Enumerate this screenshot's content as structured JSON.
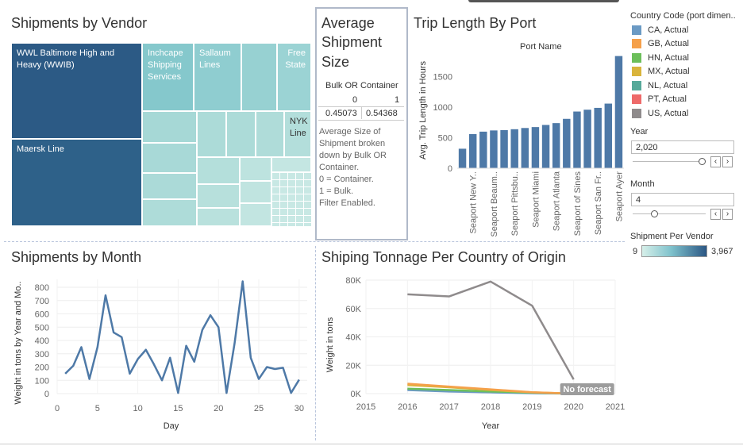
{
  "vendor": {
    "title": "Shipments by Vendor",
    "labels": {
      "wwl": "WWL Baltimore High and Heavy (WWIB)",
      "maersk": "Maersk Line",
      "inchcape": "Inchcape Shipping Services",
      "sallaum": "Sallaum Lines",
      "freestate": "Free State",
      "nyk": "NYK Line"
    }
  },
  "avg": {
    "title_1": "Average",
    "title_2": "Shipment",
    "title_3": "Size",
    "header": "Bulk OR Container",
    "col0": "0",
    "col1": "1",
    "val0": "0.45073",
    "val1": "0.54368",
    "desc": [
      "Average Size of",
      "Shipment broken",
      "down by Bulk OR",
      "Container.",
      "0 = Container.",
      "1 = Bulk.",
      "Filter Enabled."
    ]
  },
  "port": {
    "title": "Trip Length By Port",
    "header": "Port Name",
    "ylabel": "Avg. Trip Length in Hours",
    "port_labels": [
      "Seaport New Y..",
      "Seaport Beaum..",
      "Seaport Pittsbu..",
      "Seaport Miami",
      "Seaport Atlanta",
      "Seaport of Sines",
      "Seaport San Fr..",
      "Seaport Ayer"
    ]
  },
  "month": {
    "title": "Shipments by Month",
    "ylabel": "Weight in tons by Year and Mo..",
    "xlabel": "Day"
  },
  "tonnage": {
    "title": "Shiping Tonnage Per Country of Origin",
    "ylabel": "Weight in tons",
    "xlabel": "Year",
    "no_forecast": "No forecast"
  },
  "legend": {
    "title": "Country Code (port dimen..",
    "items": [
      {
        "label": "CA, Actual",
        "color": "#6b9ac4"
      },
      {
        "label": "GB, Actual",
        "color": "#f5a04a"
      },
      {
        "label": "HN, Actual",
        "color": "#6cbf5a"
      },
      {
        "label": "MX, Actual",
        "color": "#d9b43c"
      },
      {
        "label": "NL, Actual",
        "color": "#56a99a"
      },
      {
        "label": "PT, Actual",
        "color": "#ee6a6a"
      },
      {
        "label": "US, Actual",
        "color": "#8f8b8c"
      }
    ]
  },
  "filters": {
    "year_label": "Year",
    "year_value": "2,020",
    "year_level": 1.0,
    "month_label": "Month",
    "month_value": "4",
    "month_level": 0.27,
    "prev_icon": "‹",
    "next_icon": "›"
  },
  "color_scale": {
    "title": "Shipment Per Vendor",
    "min": "9",
    "max": "3,967",
    "from": "#d6efe9",
    "to": "#2b5784"
  },
  "chart_data": [
    {
      "type": "bar",
      "title": "Trip Length By Port",
      "xlabel": "Port Name",
      "ylabel": "Avg. Trip Length in Hours",
      "ylim": [
        0,
        1900
      ],
      "yticks": [
        0,
        500,
        1000,
        1500
      ],
      "tick_labels": [
        "0",
        "500",
        "1000",
        "1500"
      ],
      "categories": [
        "",
        "Seaport New Y..",
        "",
        "Seaport Beaum..",
        "",
        "Seaport Pittsbu..",
        "",
        "Seaport Miami",
        "",
        "Seaport Atlanta",
        "",
        "Seaport of Sines",
        "",
        "Seaport San Fr..",
        "",
        "Seaport Ayer"
      ],
      "values": [
        320,
        560,
        600,
        620,
        625,
        640,
        660,
        675,
        710,
        740,
        810,
        930,
        960,
        990,
        1060,
        1840
      ],
      "color": "#4e79a7"
    },
    {
      "type": "line",
      "title": "Shipments by Month",
      "xlabel": "Day",
      "ylabel": "Weight in tons by Year and Mo..",
      "xlim": [
        0,
        31
      ],
      "ylim": [
        0,
        860
      ],
      "xticks": [
        0,
        5,
        10,
        15,
        20,
        25,
        30
      ],
      "yticks": [
        0,
        100,
        200,
        300,
        400,
        500,
        600,
        700,
        800
      ],
      "x": [
        1,
        2,
        3,
        4,
        5,
        6,
        7,
        8,
        9,
        10,
        11,
        12,
        13,
        14,
        15,
        16,
        17,
        18,
        19,
        20,
        21,
        22,
        23,
        24,
        25,
        26,
        27,
        28,
        29,
        30
      ],
      "values": [
        150,
        210,
        350,
        110,
        350,
        740,
        460,
        425,
        150,
        260,
        330,
        220,
        100,
        270,
        5,
        360,
        240,
        480,
        590,
        500,
        5,
        380,
        845,
        270,
        110,
        200,
        185,
        195,
        5,
        105
      ],
      "color": "#4e79a7"
    },
    {
      "type": "line",
      "title": "Shiping Tonnage Per Country of Origin",
      "xlabel": "Year",
      "ylabel": "Weight in tons",
      "xlim": [
        2015,
        2021
      ],
      "ylim": [
        0,
        80000
      ],
      "xticks": [
        2015,
        2016,
        2017,
        2018,
        2019,
        2020,
        2021
      ],
      "yticks": [
        0,
        20000,
        40000,
        60000,
        80000
      ],
      "tick_labels": [
        "0K",
        "20K",
        "40K",
        "60K",
        "80K"
      ],
      "series": [
        {
          "name": "US, Actual",
          "color": "#8f8b8c",
          "x": [
            2016,
            2017,
            2018,
            2019,
            2020
          ],
          "values": [
            70000,
            68500,
            79000,
            62000,
            10000
          ]
        },
        {
          "name": "GB, Actual",
          "color": "#f5a04a",
          "x": [
            2016,
            2017,
            2018,
            2019,
            2020
          ],
          "values": [
            7000,
            5000,
            3000,
            1000,
            0
          ]
        },
        {
          "name": "MX, Actual",
          "color": "#d9b43c",
          "x": [
            2016,
            2017,
            2018,
            2019,
            2020
          ],
          "values": [
            6000,
            4500,
            2500,
            900,
            0
          ]
        },
        {
          "name": "HN, Actual",
          "color": "#6cbf5a",
          "x": [
            2016,
            2017,
            2018,
            2019,
            2020
          ],
          "values": [
            3500,
            2500,
            1500,
            700,
            0
          ]
        },
        {
          "name": "CA, Actual",
          "color": "#6b9ac4",
          "x": [
            2016,
            2017,
            2018,
            2019,
            2020
          ],
          "values": [
            2500,
            1500,
            900,
            300,
            0
          ]
        },
        {
          "name": "NL, Actual",
          "color": "#56a99a",
          "x": [
            2016,
            2017,
            2018,
            2019,
            2020
          ],
          "values": [
            3000,
            1800,
            1000,
            400,
            0
          ]
        }
      ]
    }
  ]
}
